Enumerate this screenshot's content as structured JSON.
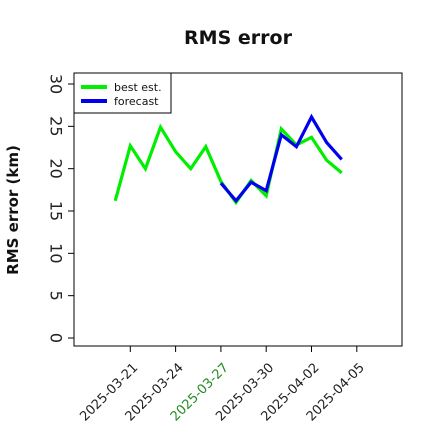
{
  "chart_data": {
    "type": "line",
    "title": "RMS error",
    "xlabel": "",
    "ylabel": "RMS error (km)",
    "ylim": [
      0,
      30
    ],
    "yticks": [
      0,
      5,
      10,
      15,
      20,
      25,
      30
    ],
    "xlim": [
      "2025-03-18",
      "2025-04-07"
    ],
    "xticks": [
      "2025-03-21",
      "2025-03-24",
      "2025-03-27",
      "2025-03-30",
      "2025-04-02",
      "2025-04-05"
    ],
    "highlighted_xtick": "2025-03-27",
    "highlight_color": "#228b22",
    "legend_position": "top-left",
    "grid": false,
    "series": [
      {
        "name": "best est.",
        "color": "#00ee00",
        "x": [
          "2025-03-20",
          "2025-03-21",
          "2025-03-22",
          "2025-03-23",
          "2025-03-24",
          "2025-03-25",
          "2025-03-26",
          "2025-03-27",
          "2025-03-28",
          "2025-03-29",
          "2025-03-30",
          "2025-03-31",
          "2025-04-01",
          "2025-04-02",
          "2025-04-03",
          "2025-04-04"
        ],
        "values": [
          16.2,
          22.7,
          20.0,
          24.9,
          22.0,
          20.0,
          22.6,
          18.5,
          16.0,
          18.6,
          16.8,
          24.7,
          22.8,
          23.7,
          21.0,
          19.5
        ]
      },
      {
        "name": "forecast",
        "color": "#0000ee",
        "x": [
          "2025-03-27",
          "2025-03-28",
          "2025-03-29",
          "2025-03-30",
          "2025-03-31",
          "2025-04-01",
          "2025-04-02",
          "2025-04-03",
          "2025-04-04"
        ],
        "values": [
          18.3,
          16.2,
          18.4,
          17.4,
          24.0,
          22.6,
          26.1,
          23.1,
          21.1
        ]
      }
    ]
  }
}
